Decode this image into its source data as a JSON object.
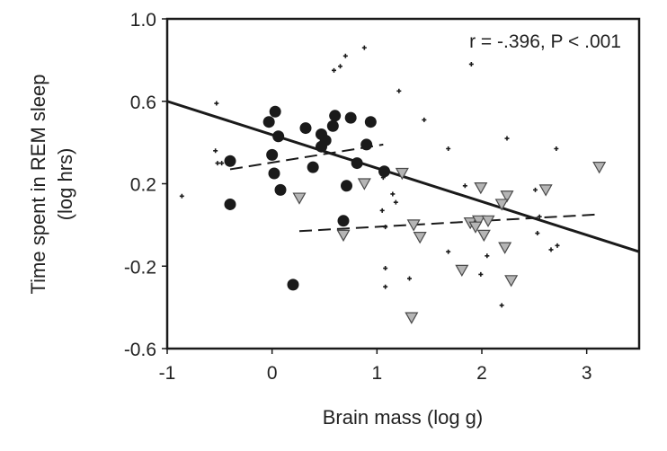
{
  "chart_data": {
    "type": "scatter",
    "title": "",
    "xlabel": "Brain mass (log g)",
    "ylabel_line1": "Time spent in REM sleep",
    "ylabel_line2": "(log hrs)",
    "annotation": "r = -.396, P < .001",
    "xlim": [
      -1,
      3.5
    ],
    "ylim": [
      -0.6,
      1.0
    ],
    "xticks": [
      -1,
      0,
      1,
      2,
      3
    ],
    "xtick_labels": [
      "-1",
      "0",
      "1",
      "2",
      "3"
    ],
    "yticks": [
      1.0,
      0.6,
      0.2,
      -0.2,
      -0.6
    ],
    "ytick_labels": [
      "1.0",
      "0.6",
      "0.2",
      "-0.2",
      "-0.6"
    ],
    "grid": false,
    "legend": "none",
    "series": [
      {
        "name": "circles",
        "marker": "filled-circle",
        "color": "#1a1a1a",
        "points": [
          [
            0.03,
            0.55
          ],
          [
            -0.03,
            0.5
          ],
          [
            0.06,
            0.43
          ],
          [
            0.32,
            0.47
          ],
          [
            0.6,
            0.53
          ],
          [
            0.75,
            0.52
          ],
          [
            0.94,
            0.5
          ],
          [
            0.58,
            0.48
          ],
          [
            0.47,
            0.44
          ],
          [
            0.51,
            0.41
          ],
          [
            0.47,
            0.38
          ],
          [
            0.9,
            0.39
          ],
          [
            0.0,
            0.34
          ],
          [
            0.02,
            0.25
          ],
          [
            0.39,
            0.28
          ],
          [
            0.81,
            0.3
          ],
          [
            1.07,
            0.26
          ],
          [
            0.08,
            0.17
          ],
          [
            0.71,
            0.19
          ],
          [
            -0.4,
            0.31
          ],
          [
            -0.4,
            0.1
          ],
          [
            0.2,
            -0.29
          ],
          [
            0.68,
            0.02
          ]
        ]
      },
      {
        "name": "triangles",
        "marker": "inverted-triangle",
        "color": "#b5b5b5",
        "points": [
          [
            1.24,
            0.25
          ],
          [
            0.88,
            0.2
          ],
          [
            0.26,
            0.13
          ],
          [
            1.99,
            0.18
          ],
          [
            1.35,
            0.0
          ],
          [
            1.89,
            0.01
          ],
          [
            1.97,
            0.02
          ],
          [
            2.06,
            0.02
          ],
          [
            1.94,
            -0.01
          ],
          [
            1.41,
            -0.06
          ],
          [
            2.02,
            -0.05
          ],
          [
            0.68,
            -0.05
          ],
          [
            1.81,
            -0.22
          ],
          [
            1.33,
            -0.45
          ],
          [
            2.24,
            0.14
          ],
          [
            2.19,
            0.1
          ],
          [
            2.61,
            0.17
          ],
          [
            3.12,
            0.28
          ],
          [
            2.22,
            -0.11
          ],
          [
            2.28,
            -0.27
          ]
        ]
      },
      {
        "name": "crosses",
        "marker": "small-cross",
        "color": "#1a1a1a",
        "points": [
          [
            0.88,
            0.86
          ],
          [
            0.7,
            0.82
          ],
          [
            0.65,
            0.77
          ],
          [
            0.59,
            0.75
          ],
          [
            1.21,
            0.65
          ],
          [
            -0.53,
            0.59
          ],
          [
            0.92,
            0.51
          ],
          [
            -0.54,
            0.36
          ],
          [
            -0.52,
            0.3
          ],
          [
            -0.48,
            0.3
          ],
          [
            -0.86,
            0.14
          ],
          [
            1.45,
            0.51
          ],
          [
            1.68,
            0.37
          ],
          [
            2.24,
            0.42
          ],
          [
            1.9,
            0.78
          ],
          [
            2.71,
            0.37
          ],
          [
            1.06,
            0.23
          ],
          [
            1.84,
            0.19
          ],
          [
            1.15,
            0.15
          ],
          [
            1.18,
            0.11
          ],
          [
            1.05,
            0.07
          ],
          [
            1.08,
            -0.01
          ],
          [
            1.68,
            -0.13
          ],
          [
            2.05,
            -0.15
          ],
          [
            1.08,
            -0.21
          ],
          [
            1.31,
            -0.26
          ],
          [
            1.99,
            -0.24
          ],
          [
            1.08,
            -0.3
          ],
          [
            2.19,
            -0.39
          ],
          [
            2.51,
            0.17
          ],
          [
            2.55,
            0.04
          ],
          [
            2.53,
            -0.04
          ],
          [
            2.72,
            -0.1
          ],
          [
            2.66,
            -0.12
          ]
        ]
      }
    ],
    "fit_lines": [
      {
        "name": "overall-regression",
        "style": "solid",
        "x": [
          -1,
          3.5
        ],
        "y": [
          0.6,
          -0.13
        ]
      },
      {
        "name": "circles-regression",
        "style": "dashed",
        "x": [
          -0.4,
          1.06
        ],
        "y": [
          0.27,
          0.39
        ]
      },
      {
        "name": "triangles-regression",
        "style": "dashed",
        "x": [
          0.26,
          3.08
        ],
        "y": [
          -0.03,
          0.05
        ]
      }
    ]
  }
}
